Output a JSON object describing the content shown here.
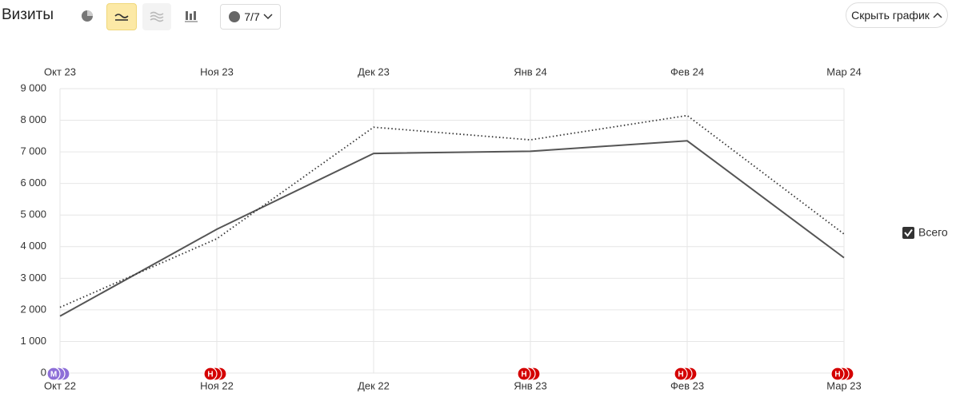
{
  "header": {
    "title": "Визиты",
    "segments_button": "7/7",
    "hide_button": "Скрыть график"
  },
  "chart_data": {
    "type": "line",
    "x_top": [
      "Окт 23",
      "Ноя 23",
      "Дек 23",
      "Янв 24",
      "Фев 24",
      "Мар 24"
    ],
    "categories": [
      "Окт 22",
      "Ноя 22",
      "Дек 22",
      "Янв 23",
      "Фев 23",
      "Мар 23"
    ],
    "series": [
      {
        "name": "Всего",
        "color": "#555555",
        "dash": "solid",
        "values": [
          1800,
          4550,
          6950,
          7020,
          7350,
          3650
        ]
      },
      {
        "color": "#333333",
        "dash": "dotted",
        "values": [
          2080,
          4250,
          7780,
          7380,
          8150,
          4400
        ]
      }
    ],
    "ylim": [
      0,
      9000
    ],
    "yticks": [
      0,
      {
        "value": 1000,
        "label": "1 000"
      },
      {
        "value": 2000,
        "label": "2 000"
      },
      {
        "value": 3000,
        "label": "3 000"
      },
      {
        "value": 4000,
        "label": "4 000"
      },
      {
        "value": 5000,
        "label": "5 000"
      },
      {
        "value": 6000,
        "label": "6 000"
      },
      {
        "value": 7000,
        "label": "7 000"
      },
      {
        "value": 8000,
        "label": "8 000"
      },
      {
        "value": 9000,
        "label": "9 000"
      }
    ],
    "grid": true,
    "annotations": [
      "М",
      "Н",
      null,
      "Н",
      "Н",
      "Н"
    ],
    "annotation_colors": [
      "#8e6fd8",
      "#d40000",
      null,
      "#d40000",
      "#d40000",
      "#d40000"
    ]
  }
}
